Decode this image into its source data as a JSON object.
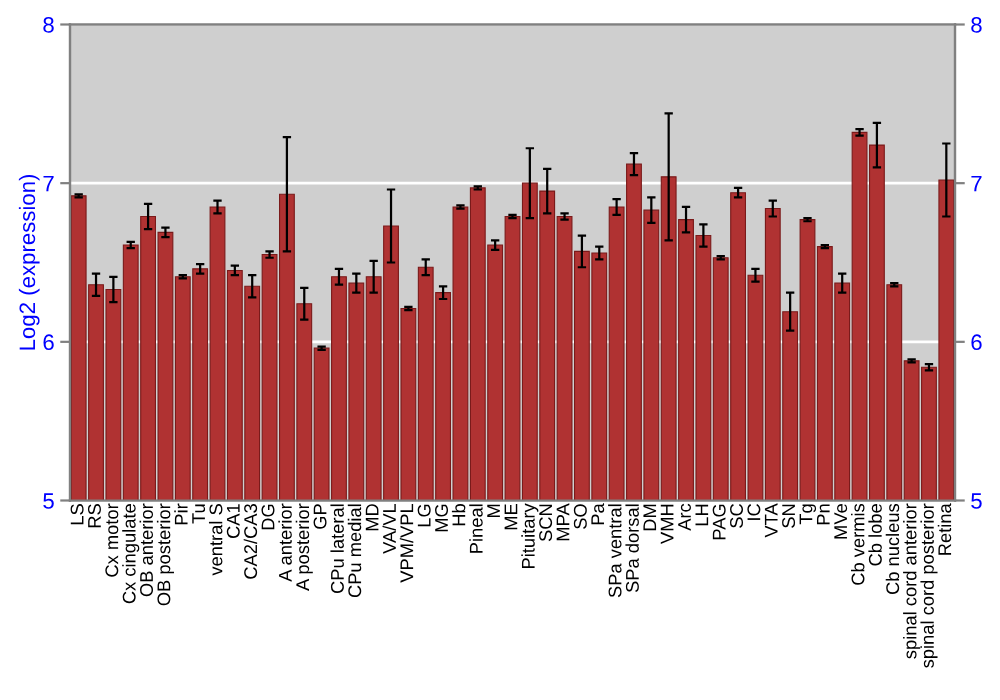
{
  "chart_data": {
    "type": "bar",
    "ylabel": "Log2 (expression)",
    "color": "#b03232",
    "categories": [
      "LS",
      "RS",
      "Cx motor",
      "Cx cingulate",
      "OB anterior",
      "OB posterior",
      "Pir",
      "Tu",
      "ventral S",
      "CA1",
      "CA2/CA3",
      "DG",
      "A anterior",
      "A posterior",
      "GP",
      "CPu lateral",
      "CPu medial",
      "MD",
      "VA/VL",
      "VPM/VPL",
      "LG",
      "MG",
      "Hb",
      "Pineal",
      "M",
      "ME",
      "Pituitary",
      "SCN",
      "MPA",
      "SO",
      "Pa",
      "SPa ventral",
      "SPa dorsal",
      "DM",
      "VMH",
      "Arc",
      "LH",
      "PAG",
      "SC",
      "IC",
      "VTA",
      "SN",
      "Tg",
      "Pn",
      "MVe",
      "Cb vermis",
      "Cb lobe",
      "Cb nucleus",
      "spinal cord anterior",
      "spinal cord posterior",
      "Retina"
    ],
    "values": [
      6.92,
      6.36,
      6.33,
      6.61,
      6.79,
      6.69,
      6.41,
      6.46,
      6.85,
      6.45,
      6.35,
      6.55,
      6.93,
      6.24,
      5.96,
      6.41,
      6.37,
      6.41,
      6.73,
      6.21,
      6.47,
      6.31,
      6.85,
      6.97,
      6.61,
      6.79,
      7.0,
      6.95,
      6.79,
      6.57,
      6.56,
      6.85,
      7.12,
      6.83,
      7.04,
      6.77,
      6.67,
      6.53,
      6.94,
      6.42,
      6.84,
      6.19,
      6.77,
      6.6,
      6.37,
      7.32,
      7.24,
      6.36,
      5.88,
      5.84,
      7.02
    ],
    "errors": [
      0.01,
      0.07,
      0.08,
      0.02,
      0.08,
      0.03,
      0.01,
      0.03,
      0.04,
      0.03,
      0.07,
      0.02,
      0.36,
      0.1,
      0.01,
      0.05,
      0.06,
      0.1,
      0.23,
      0.01,
      0.05,
      0.04,
      0.01,
      0.01,
      0.03,
      0.01,
      0.22,
      0.14,
      0.02,
      0.1,
      0.04,
      0.05,
      0.07,
      0.08,
      0.4,
      0.08,
      0.07,
      0.01,
      0.03,
      0.04,
      0.05,
      0.12,
      0.01,
      0.01,
      0.06,
      0.02,
      0.14,
      0.01,
      0.01,
      0.02,
      0.23
    ],
    "ylim": [
      5,
      8
    ],
    "yticks": [
      5,
      6,
      7,
      8
    ],
    "y2lim": [
      5,
      8
    ],
    "y2ticks": [
      5,
      6,
      7,
      8
    ],
    "grid": "y"
  }
}
